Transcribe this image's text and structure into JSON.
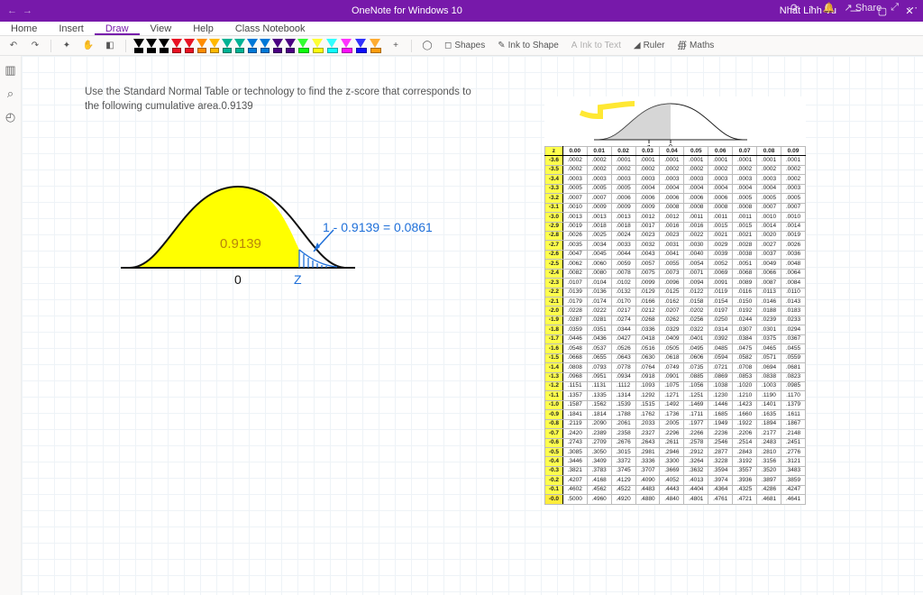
{
  "titlebar": {
    "title": "OneNote for Windows 10",
    "user": "Nhat Linh Vu"
  },
  "menubar": {
    "tabs": [
      "Home",
      "Insert",
      "Draw",
      "View",
      "Help",
      "Class Notebook"
    ],
    "active": "Draw"
  },
  "toolbar": {
    "pens": [
      {
        "color": "#000000"
      },
      {
        "color": "#000000"
      },
      {
        "color": "#000000"
      },
      {
        "color": "#e81123"
      },
      {
        "color": "#e81123"
      },
      {
        "color": "#ff8c00"
      },
      {
        "color": "#ffb900"
      },
      {
        "color": "#00b294"
      },
      {
        "color": "#00b294"
      },
      {
        "color": "#0078d7"
      },
      {
        "color": "#0078d7"
      },
      {
        "color": "#4b0082"
      },
      {
        "color": "#4b0082"
      }
    ],
    "highlighters": [
      {
        "color": "#00ff00"
      },
      {
        "color": "#ffff00"
      },
      {
        "color": "#00ffff"
      },
      {
        "color": "#ff00ff"
      },
      {
        "color": "#0000ff"
      },
      {
        "color": "#ff9900"
      }
    ],
    "actions": {
      "shapes": "Shapes",
      "inkToShape": "Ink to Shape",
      "inkToText": "Ink to Text",
      "ruler": "Ruler",
      "maths": "Maths"
    },
    "right": {
      "share": "Share"
    }
  },
  "content": {
    "prompt": "Use the Standard Normal Table or technology to find the z-score that corresponds to the following cumulative area.0.9139",
    "curve": {
      "area_label": "0.9139",
      "equation": "1 - 0.9139 =   0.0861",
      "axis_zero": "0",
      "axis_z": "Z",
      "fill_color": "#ffff00",
      "tail_hatch_color": "#1e6fd9",
      "line_color": "#111111",
      "highlight_color": "#ffff4d"
    }
  },
  "ztable": {
    "curve_labels": {
      "z": "z",
      "zero": "0"
    },
    "header": [
      "z",
      "0.00",
      "0.01",
      "0.02",
      "0.03",
      "0.04",
      "0.05",
      "0.06",
      "0.07",
      "0.08",
      "0.09"
    ],
    "blocks": [
      [
        [
          "-3.6",
          ".0002",
          ".0002",
          ".0001",
          ".0001",
          ".0001",
          ".0001",
          ".0001",
          ".0001",
          ".0001",
          ".0001"
        ],
        [
          "-3.5",
          ".0002",
          ".0002",
          ".0002",
          ".0002",
          ".0002",
          ".0002",
          ".0002",
          ".0002",
          ".0002",
          ".0002"
        ]
      ],
      [
        [
          "-3.4",
          ".0003",
          ".0003",
          ".0003",
          ".0003",
          ".0003",
          ".0003",
          ".0003",
          ".0003",
          ".0003",
          ".0002"
        ],
        [
          "-3.3",
          ".0005",
          ".0005",
          ".0005",
          ".0004",
          ".0004",
          ".0004",
          ".0004",
          ".0004",
          ".0004",
          ".0003"
        ],
        [
          "-3.2",
          ".0007",
          ".0007",
          ".0006",
          ".0006",
          ".0006",
          ".0006",
          ".0006",
          ".0005",
          ".0005",
          ".0005"
        ],
        [
          "-3.1",
          ".0010",
          ".0009",
          ".0009",
          ".0009",
          ".0008",
          ".0008",
          ".0008",
          ".0008",
          ".0007",
          ".0007"
        ],
        [
          "-3.0",
          ".0013",
          ".0013",
          ".0013",
          ".0012",
          ".0012",
          ".0011",
          ".0011",
          ".0011",
          ".0010",
          ".0010"
        ]
      ],
      [
        [
          "-2.9",
          ".0019",
          ".0018",
          ".0018",
          ".0017",
          ".0016",
          ".0016",
          ".0015",
          ".0015",
          ".0014",
          ".0014"
        ],
        [
          "-2.8",
          ".0026",
          ".0025",
          ".0024",
          ".0023",
          ".0023",
          ".0022",
          ".0021",
          ".0021",
          ".0020",
          ".0019"
        ],
        [
          "-2.7",
          ".0035",
          ".0034",
          ".0033",
          ".0032",
          ".0031",
          ".0030",
          ".0029",
          ".0028",
          ".0027",
          ".0026"
        ],
        [
          "-2.6",
          ".0047",
          ".0045",
          ".0044",
          ".0043",
          ".0041",
          ".0040",
          ".0039",
          ".0038",
          ".0037",
          ".0036"
        ],
        [
          "-2.5",
          ".0062",
          ".0060",
          ".0059",
          ".0057",
          ".0055",
          ".0054",
          ".0052",
          ".0051",
          ".0049",
          ".0048"
        ]
      ],
      [
        [
          "-2.4",
          ".0082",
          ".0080",
          ".0078",
          ".0075",
          ".0073",
          ".0071",
          ".0069",
          ".0068",
          ".0066",
          ".0064"
        ],
        [
          "-2.3",
          ".0107",
          ".0104",
          ".0102",
          ".0099",
          ".0096",
          ".0094",
          ".0091",
          ".0089",
          ".0087",
          ".0084"
        ],
        [
          "-2.2",
          ".0139",
          ".0136",
          ".0132",
          ".0129",
          ".0125",
          ".0122",
          ".0119",
          ".0116",
          ".0113",
          ".0110"
        ],
        [
          "-2.1",
          ".0179",
          ".0174",
          ".0170",
          ".0166",
          ".0162",
          ".0158",
          ".0154",
          ".0150",
          ".0146",
          ".0143"
        ],
        [
          "-2.0",
          ".0228",
          ".0222",
          ".0217",
          ".0212",
          ".0207",
          ".0202",
          ".0197",
          ".0192",
          ".0188",
          ".0183"
        ]
      ],
      [
        [
          "-1.9",
          ".0287",
          ".0281",
          ".0274",
          ".0268",
          ".0262",
          ".0256",
          ".0250",
          ".0244",
          ".0239",
          ".0233"
        ],
        [
          "-1.8",
          ".0359",
          ".0351",
          ".0344",
          ".0336",
          ".0329",
          ".0322",
          ".0314",
          ".0307",
          ".0301",
          ".0294"
        ],
        [
          "-1.7",
          ".0446",
          ".0436",
          ".0427",
          ".0418",
          ".0409",
          ".0401",
          ".0392",
          ".0384",
          ".0375",
          ".0367"
        ],
        [
          "-1.6",
          ".0548",
          ".0537",
          ".0526",
          ".0516",
          ".0505",
          ".0495",
          ".0485",
          ".0475",
          ".0465",
          ".0455"
        ],
        [
          "-1.5",
          ".0668",
          ".0655",
          ".0643",
          ".0630",
          ".0618",
          ".0606",
          ".0594",
          ".0582",
          ".0571",
          ".0559"
        ]
      ],
      [
        [
          "-1.4",
          ".0808",
          ".0793",
          ".0778",
          ".0764",
          ".0749",
          ".0735",
          ".0721",
          ".0708",
          ".0694",
          ".0681"
        ],
        [
          "-1.3",
          ".0968",
          ".0951",
          ".0934",
          ".0918",
          ".0901",
          ".0885",
          ".0869",
          ".0853",
          ".0838",
          ".0823"
        ],
        [
          "-1.2",
          ".1151",
          ".1131",
          ".1112",
          ".1093",
          ".1075",
          ".1056",
          ".1038",
          ".1020",
          ".1003",
          ".0985"
        ],
        [
          "-1.1",
          ".1357",
          ".1335",
          ".1314",
          ".1292",
          ".1271",
          ".1251",
          ".1230",
          ".1210",
          ".1190",
          ".1170"
        ],
        [
          "-1.0",
          ".1587",
          ".1562",
          ".1539",
          ".1515",
          ".1492",
          ".1469",
          ".1446",
          ".1423",
          ".1401",
          ".1379"
        ]
      ],
      [
        [
          "-0.9",
          ".1841",
          ".1814",
          ".1788",
          ".1762",
          ".1736",
          ".1711",
          ".1685",
          ".1660",
          ".1635",
          ".1611"
        ],
        [
          "-0.8",
          ".2119",
          ".2090",
          ".2061",
          ".2033",
          ".2005",
          ".1977",
          ".1949",
          ".1922",
          ".1894",
          ".1867"
        ],
        [
          "-0.7",
          ".2420",
          ".2389",
          ".2358",
          ".2327",
          ".2296",
          ".2266",
          ".2236",
          ".2206",
          ".2177",
          ".2148"
        ],
        [
          "-0.6",
          ".2743",
          ".2709",
          ".2676",
          ".2643",
          ".2611",
          ".2578",
          ".2546",
          ".2514",
          ".2483",
          ".2451"
        ],
        [
          "-0.5",
          ".3085",
          ".3050",
          ".3015",
          ".2981",
          ".2946",
          ".2912",
          ".2877",
          ".2843",
          ".2810",
          ".2776"
        ]
      ],
      [
        [
          "-0.4",
          ".3446",
          ".3409",
          ".3372",
          ".3336",
          ".3300",
          ".3264",
          ".3228",
          ".3192",
          ".3156",
          ".3121"
        ],
        [
          "-0.3",
          ".3821",
          ".3783",
          ".3745",
          ".3707",
          ".3669",
          ".3632",
          ".3594",
          ".3557",
          ".3520",
          ".3483"
        ],
        [
          "-0.2",
          ".4207",
          ".4168",
          ".4129",
          ".4090",
          ".4052",
          ".4013",
          ".3974",
          ".3936",
          ".3897",
          ".3859"
        ],
        [
          "-0.1",
          ".4602",
          ".4562",
          ".4522",
          ".4483",
          ".4443",
          ".4404",
          ".4364",
          ".4325",
          ".4286",
          ".4247"
        ],
        [
          "-0.0",
          ".5000",
          ".4960",
          ".4920",
          ".4880",
          ".4840",
          ".4801",
          ".4761",
          ".4721",
          ".4681",
          ".4641"
        ]
      ]
    ]
  }
}
